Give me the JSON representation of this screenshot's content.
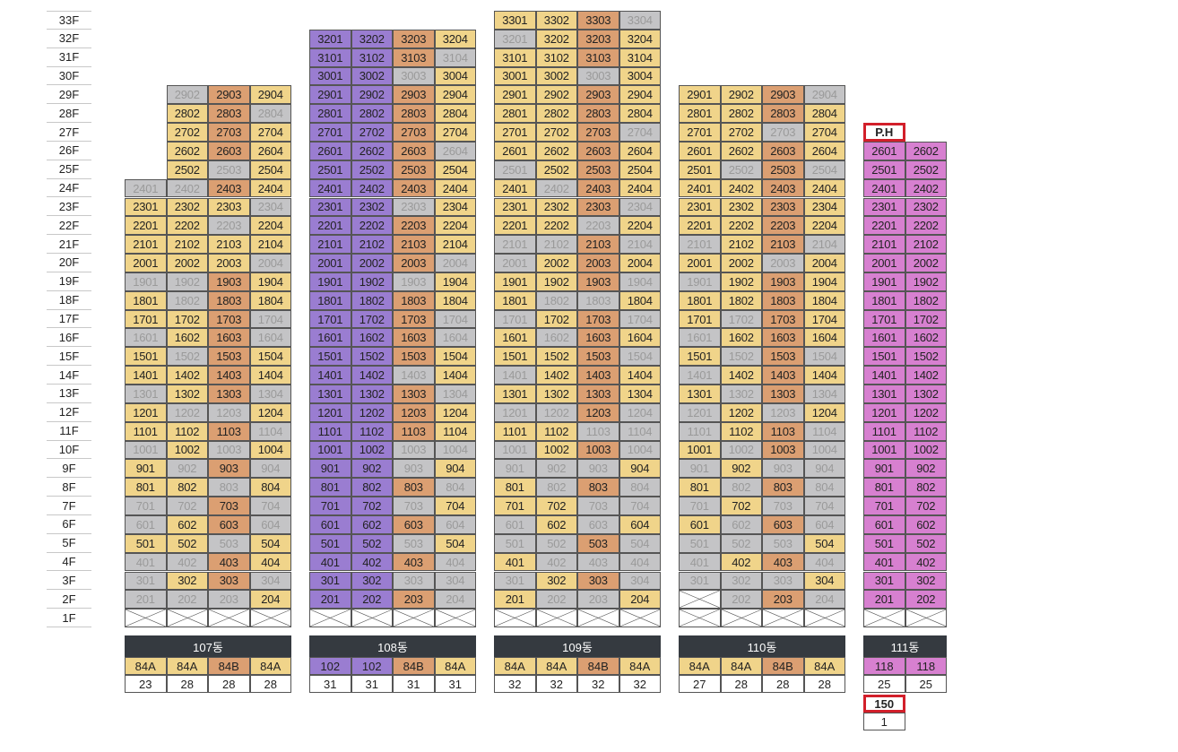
{
  "colors": {
    "yellow": "#f0d48a",
    "orange": "#db9f72",
    "gray": "#c4c4c6",
    "purple": "#9a7dd1",
    "pink": "#d780d0",
    "header_bg": "#353a40",
    "header_text": "#ffffff",
    "red_outline": "#d21f2a"
  },
  "floors": [
    "33F",
    "32F",
    "31F",
    "30F",
    "29F",
    "28F",
    "27F",
    "26F",
    "25F",
    "24F",
    "23F",
    "22F",
    "21F",
    "20F",
    "19F",
    "18F",
    "17F",
    "16F",
    "15F",
    "14F",
    "13F",
    "12F",
    "11F",
    "10F",
    "9F",
    "8F",
    "7F",
    "6F",
    "5F",
    "4F",
    "3F",
    "2F",
    "1F"
  ],
  "buildings": [
    {
      "name": "107동",
      "cols": 4,
      "top_floor": 29,
      "rows": {
        "29": "G O Y",
        "28": "Y O G",
        "27": "Y O Y",
        "26": "Y O Y",
        "25": "Y G Y"
      },
      "blank_first_col_from": 25,
      "grid": [
        [
          "24",
          "G G O Y"
        ],
        [
          "23",
          "Y Y Y G"
        ],
        [
          "22",
          "Y Y G Y"
        ],
        [
          "21",
          "Y Y Y Y"
        ],
        [
          "20",
          "Y Y Y G"
        ],
        [
          "19",
          "G G O Y"
        ],
        [
          "18",
          "Y G O Y"
        ],
        [
          "17",
          "Y Y O G"
        ],
        [
          "16",
          "G Y O G"
        ],
        [
          "15",
          "Y G O Y"
        ],
        [
          "14",
          "Y Y O Y"
        ],
        [
          "13",
          "G Y O G"
        ],
        [
          "12",
          "Y G G Y"
        ],
        [
          "11",
          "Y Y O G"
        ],
        [
          "10",
          "G Y G Y"
        ],
        [
          "9",
          "Y G O G"
        ],
        [
          "8",
          "Y Y G Y"
        ],
        [
          "7",
          "G G O G"
        ],
        [
          "6",
          "G Y O G"
        ],
        [
          "5",
          "Y Y G Y"
        ],
        [
          "4",
          "G G O Y"
        ],
        [
          "3",
          "G Y O G"
        ],
        [
          "2",
          "G G G Y"
        ]
      ],
      "types": [
        [
          "84A",
          "Y"
        ],
        [
          "84A",
          "Y"
        ],
        [
          "84B",
          "O"
        ],
        [
          "84A",
          "Y"
        ]
      ],
      "counts": [
        "23",
        "28",
        "28",
        "28"
      ]
    },
    {
      "name": "108동",
      "cols": 4,
      "grid": [
        [
          "32",
          "P P O Y"
        ],
        [
          "31",
          "P P O G"
        ],
        [
          "30",
          "P P G Y"
        ],
        [
          "29",
          "P P O Y"
        ],
        [
          "28",
          "P P O Y"
        ],
        [
          "27",
          "P P O Y"
        ],
        [
          "26",
          "P P O G"
        ],
        [
          "25",
          "P P O Y"
        ],
        [
          "24",
          "P P O Y"
        ],
        [
          "23",
          "P P G Y"
        ],
        [
          "22",
          "P P O Y"
        ],
        [
          "21",
          "P P O Y"
        ],
        [
          "20",
          "P P O G"
        ],
        [
          "19",
          "P P G Y"
        ],
        [
          "18",
          "P P O Y"
        ],
        [
          "17",
          "P P O G"
        ],
        [
          "16",
          "P P O G"
        ],
        [
          "15",
          "P P O Y"
        ],
        [
          "14",
          "P P G Y"
        ],
        [
          "13",
          "P P O G"
        ],
        [
          "12",
          "P P O Y"
        ],
        [
          "11",
          "P P O Y"
        ],
        [
          "10",
          "P P G G"
        ],
        [
          "9",
          "P P G Y"
        ],
        [
          "8",
          "P P O G"
        ],
        [
          "7",
          "P P G Y"
        ],
        [
          "6",
          "P P O G"
        ],
        [
          "5",
          "P P G Y"
        ],
        [
          "4",
          "P P O G"
        ],
        [
          "3",
          "P P G G"
        ],
        [
          "2",
          "P P O G"
        ]
      ],
      "types": [
        [
          "102",
          "P"
        ],
        [
          "102",
          "P"
        ],
        [
          "84B",
          "O"
        ],
        [
          "84A",
          "Y"
        ]
      ],
      "counts": [
        "31",
        "31",
        "31",
        "31"
      ]
    },
    {
      "name": "109동",
      "cols": 4,
      "grid": [
        [
          "33",
          "Y Y O G"
        ],
        [
          "32",
          "G Y O Y"
        ],
        [
          "31",
          "Y Y O Y"
        ],
        [
          "30",
          "Y Y G Y"
        ],
        [
          "29",
          "Y Y O Y"
        ],
        [
          "28",
          "Y Y O Y"
        ],
        [
          "27",
          "Y Y O G"
        ],
        [
          "26",
          "Y Y O Y"
        ],
        [
          "25",
          "G Y O Y"
        ],
        [
          "24",
          "Y G O Y"
        ],
        [
          "23",
          "Y Y O G"
        ],
        [
          "22",
          "Y Y G Y"
        ],
        [
          "21",
          "G G O G"
        ],
        [
          "20",
          "G Y O Y"
        ],
        [
          "19",
          "Y Y O G"
        ],
        [
          "18",
          "Y G G Y"
        ],
        [
          "17",
          "G Y O G"
        ],
        [
          "16",
          "Y G O Y"
        ],
        [
          "15",
          "Y Y O G"
        ],
        [
          "14",
          "G Y O Y"
        ],
        [
          "13",
          "Y Y O Y"
        ],
        [
          "12",
          "G G O G"
        ],
        [
          "11",
          "Y Y G G"
        ],
        [
          "10",
          "G Y O G"
        ],
        [
          "9",
          "G G G Y"
        ],
        [
          "8",
          "Y G O G"
        ],
        [
          "7",
          "Y Y G G"
        ],
        [
          "6",
          "G Y G Y"
        ],
        [
          "5",
          "G G O G"
        ],
        [
          "4",
          "Y G G G"
        ],
        [
          "3",
          "G Y O G"
        ],
        [
          "2",
          "Y G G Y"
        ]
      ],
      "types": [
        [
          "84A",
          "Y"
        ],
        [
          "84A",
          "Y"
        ],
        [
          "84B",
          "O"
        ],
        [
          "84A",
          "Y"
        ]
      ],
      "counts": [
        "32",
        "32",
        "32",
        "32"
      ]
    },
    {
      "name": "110동",
      "cols": 4,
      "grid": [
        [
          "29",
          "Y Y O G"
        ],
        [
          "28",
          "Y Y O Y"
        ],
        [
          "27",
          "Y Y G Y"
        ],
        [
          "26",
          "Y Y O Y"
        ],
        [
          "25",
          "Y G O G"
        ],
        [
          "24",
          "Y Y O Y"
        ],
        [
          "23",
          "Y Y O Y"
        ],
        [
          "22",
          "Y Y O Y"
        ],
        [
          "21",
          "G Y O G"
        ],
        [
          "20",
          "Y Y G Y"
        ],
        [
          "19",
          "G Y O Y"
        ],
        [
          "18",
          "Y Y O Y"
        ],
        [
          "17",
          "Y G O Y"
        ],
        [
          "16",
          "G Y O Y"
        ],
        [
          "15",
          "Y G O G"
        ],
        [
          "14",
          "G Y O Y"
        ],
        [
          "13",
          "Y G O G"
        ],
        [
          "12",
          "G Y G Y"
        ],
        [
          "11",
          "G Y O G"
        ],
        [
          "10",
          "Y G O G"
        ],
        [
          "9",
          "G Y G G"
        ],
        [
          "8",
          "Y G O G"
        ],
        [
          "7",
          "G Y G G"
        ],
        [
          "6",
          "Y G O G"
        ],
        [
          "5",
          "G G G Y"
        ],
        [
          "4",
          "G Y O G"
        ],
        [
          "3",
          "G G G Y"
        ],
        [
          "2",
          "X G O G"
        ]
      ],
      "types": [
        [
          "84A",
          "Y"
        ],
        [
          "84A",
          "Y"
        ],
        [
          "84B",
          "O"
        ],
        [
          "84A",
          "Y"
        ]
      ],
      "counts": [
        "27",
        "28",
        "28",
        "28"
      ]
    },
    {
      "name": "111동",
      "cols": 2,
      "ph_label": "P.H",
      "grid": [
        [
          "26",
          "K K"
        ],
        [
          "25",
          "K K"
        ],
        [
          "24",
          "K K"
        ],
        [
          "23",
          "K K"
        ],
        [
          "22",
          "K K"
        ],
        [
          "21",
          "K K"
        ],
        [
          "20",
          "K K"
        ],
        [
          "19",
          "K K"
        ],
        [
          "18",
          "K K"
        ],
        [
          "17",
          "K K"
        ],
        [
          "16",
          "K K"
        ],
        [
          "15",
          "K K"
        ],
        [
          "14",
          "K K"
        ],
        [
          "13",
          "K K"
        ],
        [
          "12",
          "K K"
        ],
        [
          "11",
          "K K"
        ],
        [
          "10",
          "K K"
        ],
        [
          "9",
          "K K"
        ],
        [
          "8",
          "K K"
        ],
        [
          "7",
          "K K"
        ],
        [
          "6",
          "K K"
        ],
        [
          "5",
          "K K"
        ],
        [
          "4",
          "K K"
        ],
        [
          "3",
          "K K"
        ],
        [
          "2",
          "K K"
        ]
      ],
      "types": [
        [
          "118",
          "K"
        ],
        [
          "118",
          "K"
        ]
      ],
      "counts": [
        "25",
        "25"
      ],
      "extra_type": "150",
      "extra_count": "1"
    }
  ]
}
